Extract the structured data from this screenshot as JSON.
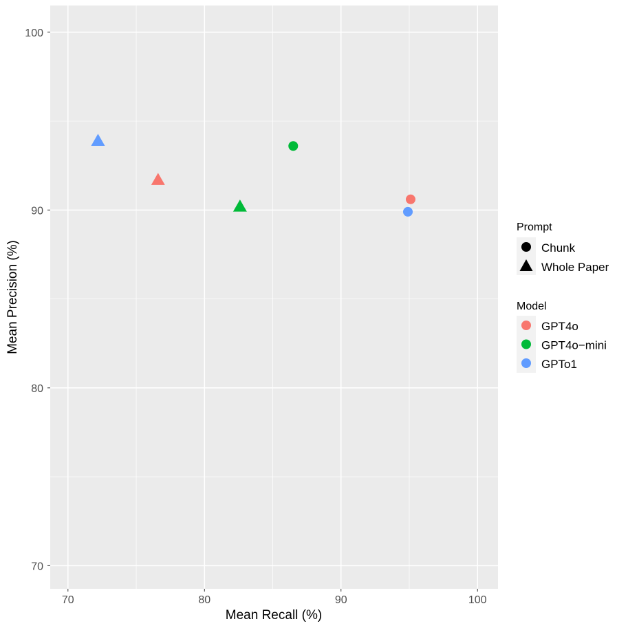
{
  "chart_data": {
    "type": "scatter",
    "xlabel": "Mean Recall (%)",
    "ylabel": "Mean Precision (%)",
    "xlim": [
      68.7,
      101.5
    ],
    "ylim": [
      68.7,
      101.5
    ],
    "x_ticks": [
      70,
      80,
      90,
      100
    ],
    "y_ticks": [
      70,
      80,
      90,
      100
    ],
    "grid": true,
    "legend_position": "right",
    "points": [
      {
        "model": "GPTo1",
        "prompt": "Whole Paper",
        "x": 72.2,
        "y": 93.9
      },
      {
        "model": "GPT4o",
        "prompt": "Whole Paper",
        "x": 76.6,
        "y": 91.7
      },
      {
        "model": "GPT4o-mini",
        "prompt": "Whole Paper",
        "x": 82.6,
        "y": 90.2
      },
      {
        "model": "GPT4o-mini",
        "prompt": "Chunk",
        "x": 86.5,
        "y": 93.6
      },
      {
        "model": "GPT4o",
        "prompt": "Chunk",
        "x": 95.1,
        "y": 90.6
      },
      {
        "model": "GPTo1",
        "prompt": "Chunk",
        "x": 94.9,
        "y": 89.9
      }
    ],
    "legend": {
      "prompt": {
        "title": "Prompt",
        "items": [
          {
            "label": "Chunk",
            "shape": "circle"
          },
          {
            "label": "Whole Paper",
            "shape": "triangle"
          }
        ]
      },
      "model": {
        "title": "Model",
        "items": [
          {
            "label": "GPT4o",
            "color": "#F8766D"
          },
          {
            "label": "GPT4o−mini",
            "color": "#00BA38"
          },
          {
            "label": "GPTo1",
            "color": "#619CFF"
          }
        ]
      }
    },
    "model_colors": {
      "GPT4o": "#F8766D",
      "GPT4o-mini": "#00BA38",
      "GPTo1": "#619CFF"
    }
  }
}
